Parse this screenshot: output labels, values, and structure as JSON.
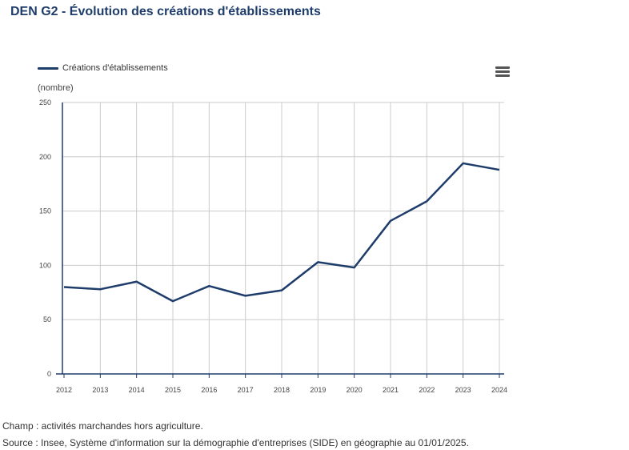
{
  "title": "DEN G2 - Évolution des créations d'établissements",
  "menu_icon": "hamburger-menu-icon",
  "colors": {
    "series": "#1f3d6b",
    "grid": "#cccccc",
    "axis": "#1f3d6b"
  },
  "chart_data": {
    "type": "line",
    "title": "DEN G2 - Évolution des créations d'établissements",
    "xlabel": "",
    "ylabel": "(nombre)",
    "x": [
      "2012",
      "2013",
      "2014",
      "2015",
      "2016",
      "2017",
      "2018",
      "2019",
      "2020",
      "2021",
      "2022",
      "2023",
      "2024"
    ],
    "series": [
      {
        "name": "Créations d'établissements",
        "values": [
          80,
          78,
          85,
          67,
          81,
          72,
          77,
          103,
          98,
          141,
          159,
          194,
          188
        ]
      }
    ],
    "ylim": [
      0,
      250
    ],
    "yticks": [
      0,
      50,
      100,
      150,
      200,
      250
    ],
    "grid": true,
    "legend_position": "top-left"
  },
  "footer": {
    "champ": "Champ : activités marchandes hors agriculture.",
    "source": "Source : Insee, Système d'information sur la démographie d'entreprises (SIDE) en géographie au 01/01/2025."
  }
}
